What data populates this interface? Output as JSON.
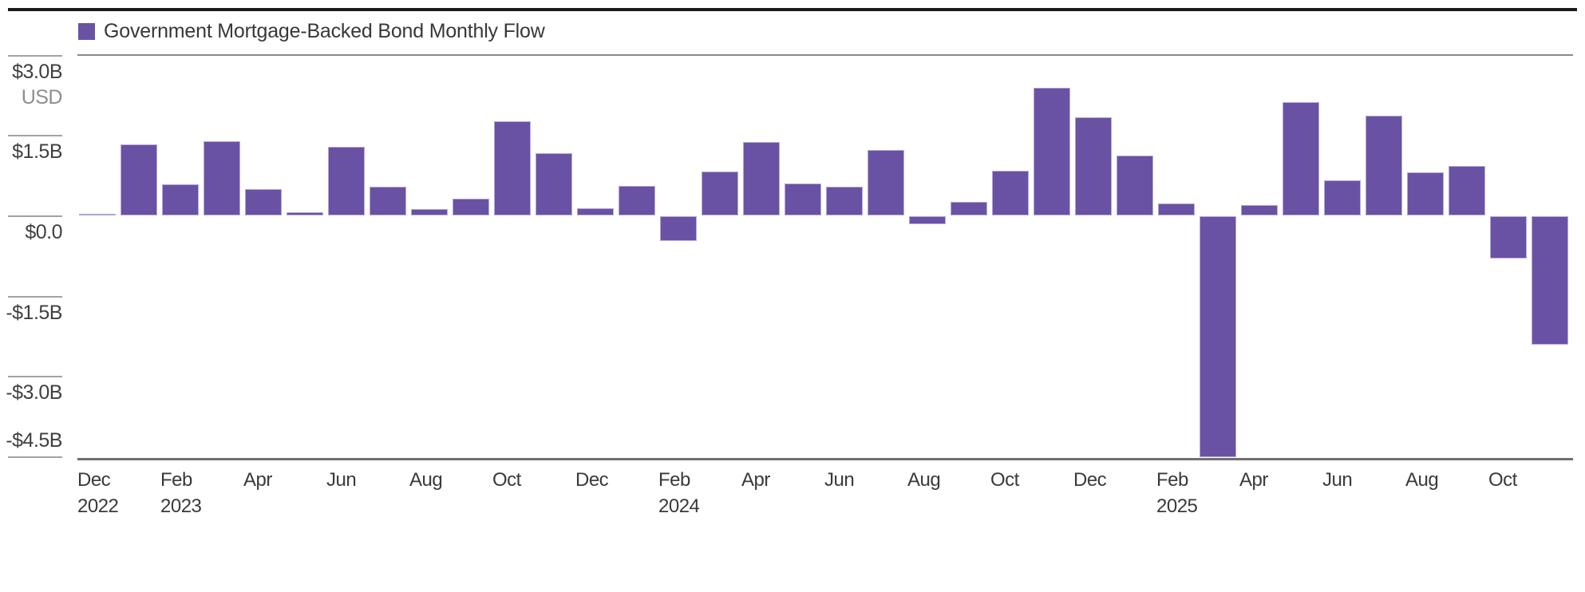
{
  "legend": {
    "label": "Government Mortgage-Backed Bond Monthly Flow",
    "swatch_color": "#6952A3"
  },
  "colors": {
    "bar_fill": "#6952A3",
    "bar_border": "#B7A8D9",
    "near_zero_bar": "#AFA3D6",
    "text_dark": "#3A3A3A",
    "text_muted": "#8E8E8E",
    "tick_line": "#A2A2A2",
    "axis_line": "#6F6F6F",
    "top_rule": "#1B1B1B"
  },
  "y_axis": {
    "unit_label": "USD",
    "tick_labels": [
      "$3.0B",
      "$1.5B",
      "$0.0",
      "-$1.5B",
      "-$3.0B",
      "-$4.5B"
    ],
    "tick_values": [
      3.0,
      1.5,
      0.0,
      -1.5,
      -3.0,
      -4.5
    ]
  },
  "chart_data": {
    "type": "bar",
    "title": "Government Mortgage-Backed Bond Monthly Flow",
    "ylabel": "USD",
    "ylim": [
      -4.55,
      3.0
    ],
    "grid": false,
    "legend_position": "top-left",
    "categories": [
      "Dec 2022",
      "Jan 2023",
      "Feb 2023",
      "Mar 2023",
      "Apr 2023",
      "May 2023",
      "Jun 2023",
      "Jul 2023",
      "Aug 2023",
      "Sep 2023",
      "Oct 2023",
      "Nov 2023",
      "Dec 2023",
      "Jan 2024",
      "Feb 2024",
      "Mar 2024",
      "Apr 2024",
      "May 2024",
      "Jun 2024",
      "Jul 2024",
      "Aug 2024",
      "Sep 2024",
      "Oct 2024",
      "Nov 2024",
      "Dec 2024",
      "Jan 2025",
      "Feb 2025",
      "Mar 2025",
      "Apr 2025",
      "May 2025",
      "Jun 2025",
      "Jul 2025",
      "Aug 2025",
      "Sep 2025",
      "Oct 2025",
      "Nov 2025"
    ],
    "values": [
      0.03,
      1.32,
      0.58,
      1.39,
      0.49,
      0.06,
      1.28,
      0.53,
      0.12,
      0.31,
      1.76,
      1.17,
      0.13,
      0.55,
      -0.46,
      0.82,
      1.37,
      0.6,
      0.54,
      1.22,
      -0.15,
      0.26,
      0.84,
      2.38,
      1.84,
      1.12,
      0.22,
      -4.5,
      0.2,
      2.12,
      0.66,
      1.86,
      0.8,
      0.93,
      -0.79,
      -2.4
    ],
    "x_ticks": [
      {
        "i": 0,
        "month": "Dec",
        "year": "2022"
      },
      {
        "i": 2,
        "month": "Feb",
        "year": "2023"
      },
      {
        "i": 4,
        "month": "Apr"
      },
      {
        "i": 6,
        "month": "Jun"
      },
      {
        "i": 8,
        "month": "Aug"
      },
      {
        "i": 10,
        "month": "Oct"
      },
      {
        "i": 12,
        "month": "Dec"
      },
      {
        "i": 14,
        "month": "Feb",
        "year": "2024"
      },
      {
        "i": 16,
        "month": "Apr"
      },
      {
        "i": 18,
        "month": "Jun"
      },
      {
        "i": 20,
        "month": "Aug"
      },
      {
        "i": 22,
        "month": "Oct"
      },
      {
        "i": 24,
        "month": "Dec"
      },
      {
        "i": 26,
        "month": "Feb",
        "year": "2025"
      },
      {
        "i": 28,
        "month": "Apr"
      },
      {
        "i": 30,
        "month": "Jun"
      },
      {
        "i": 32,
        "month": "Aug"
      },
      {
        "i": 34,
        "month": "Oct"
      }
    ]
  }
}
